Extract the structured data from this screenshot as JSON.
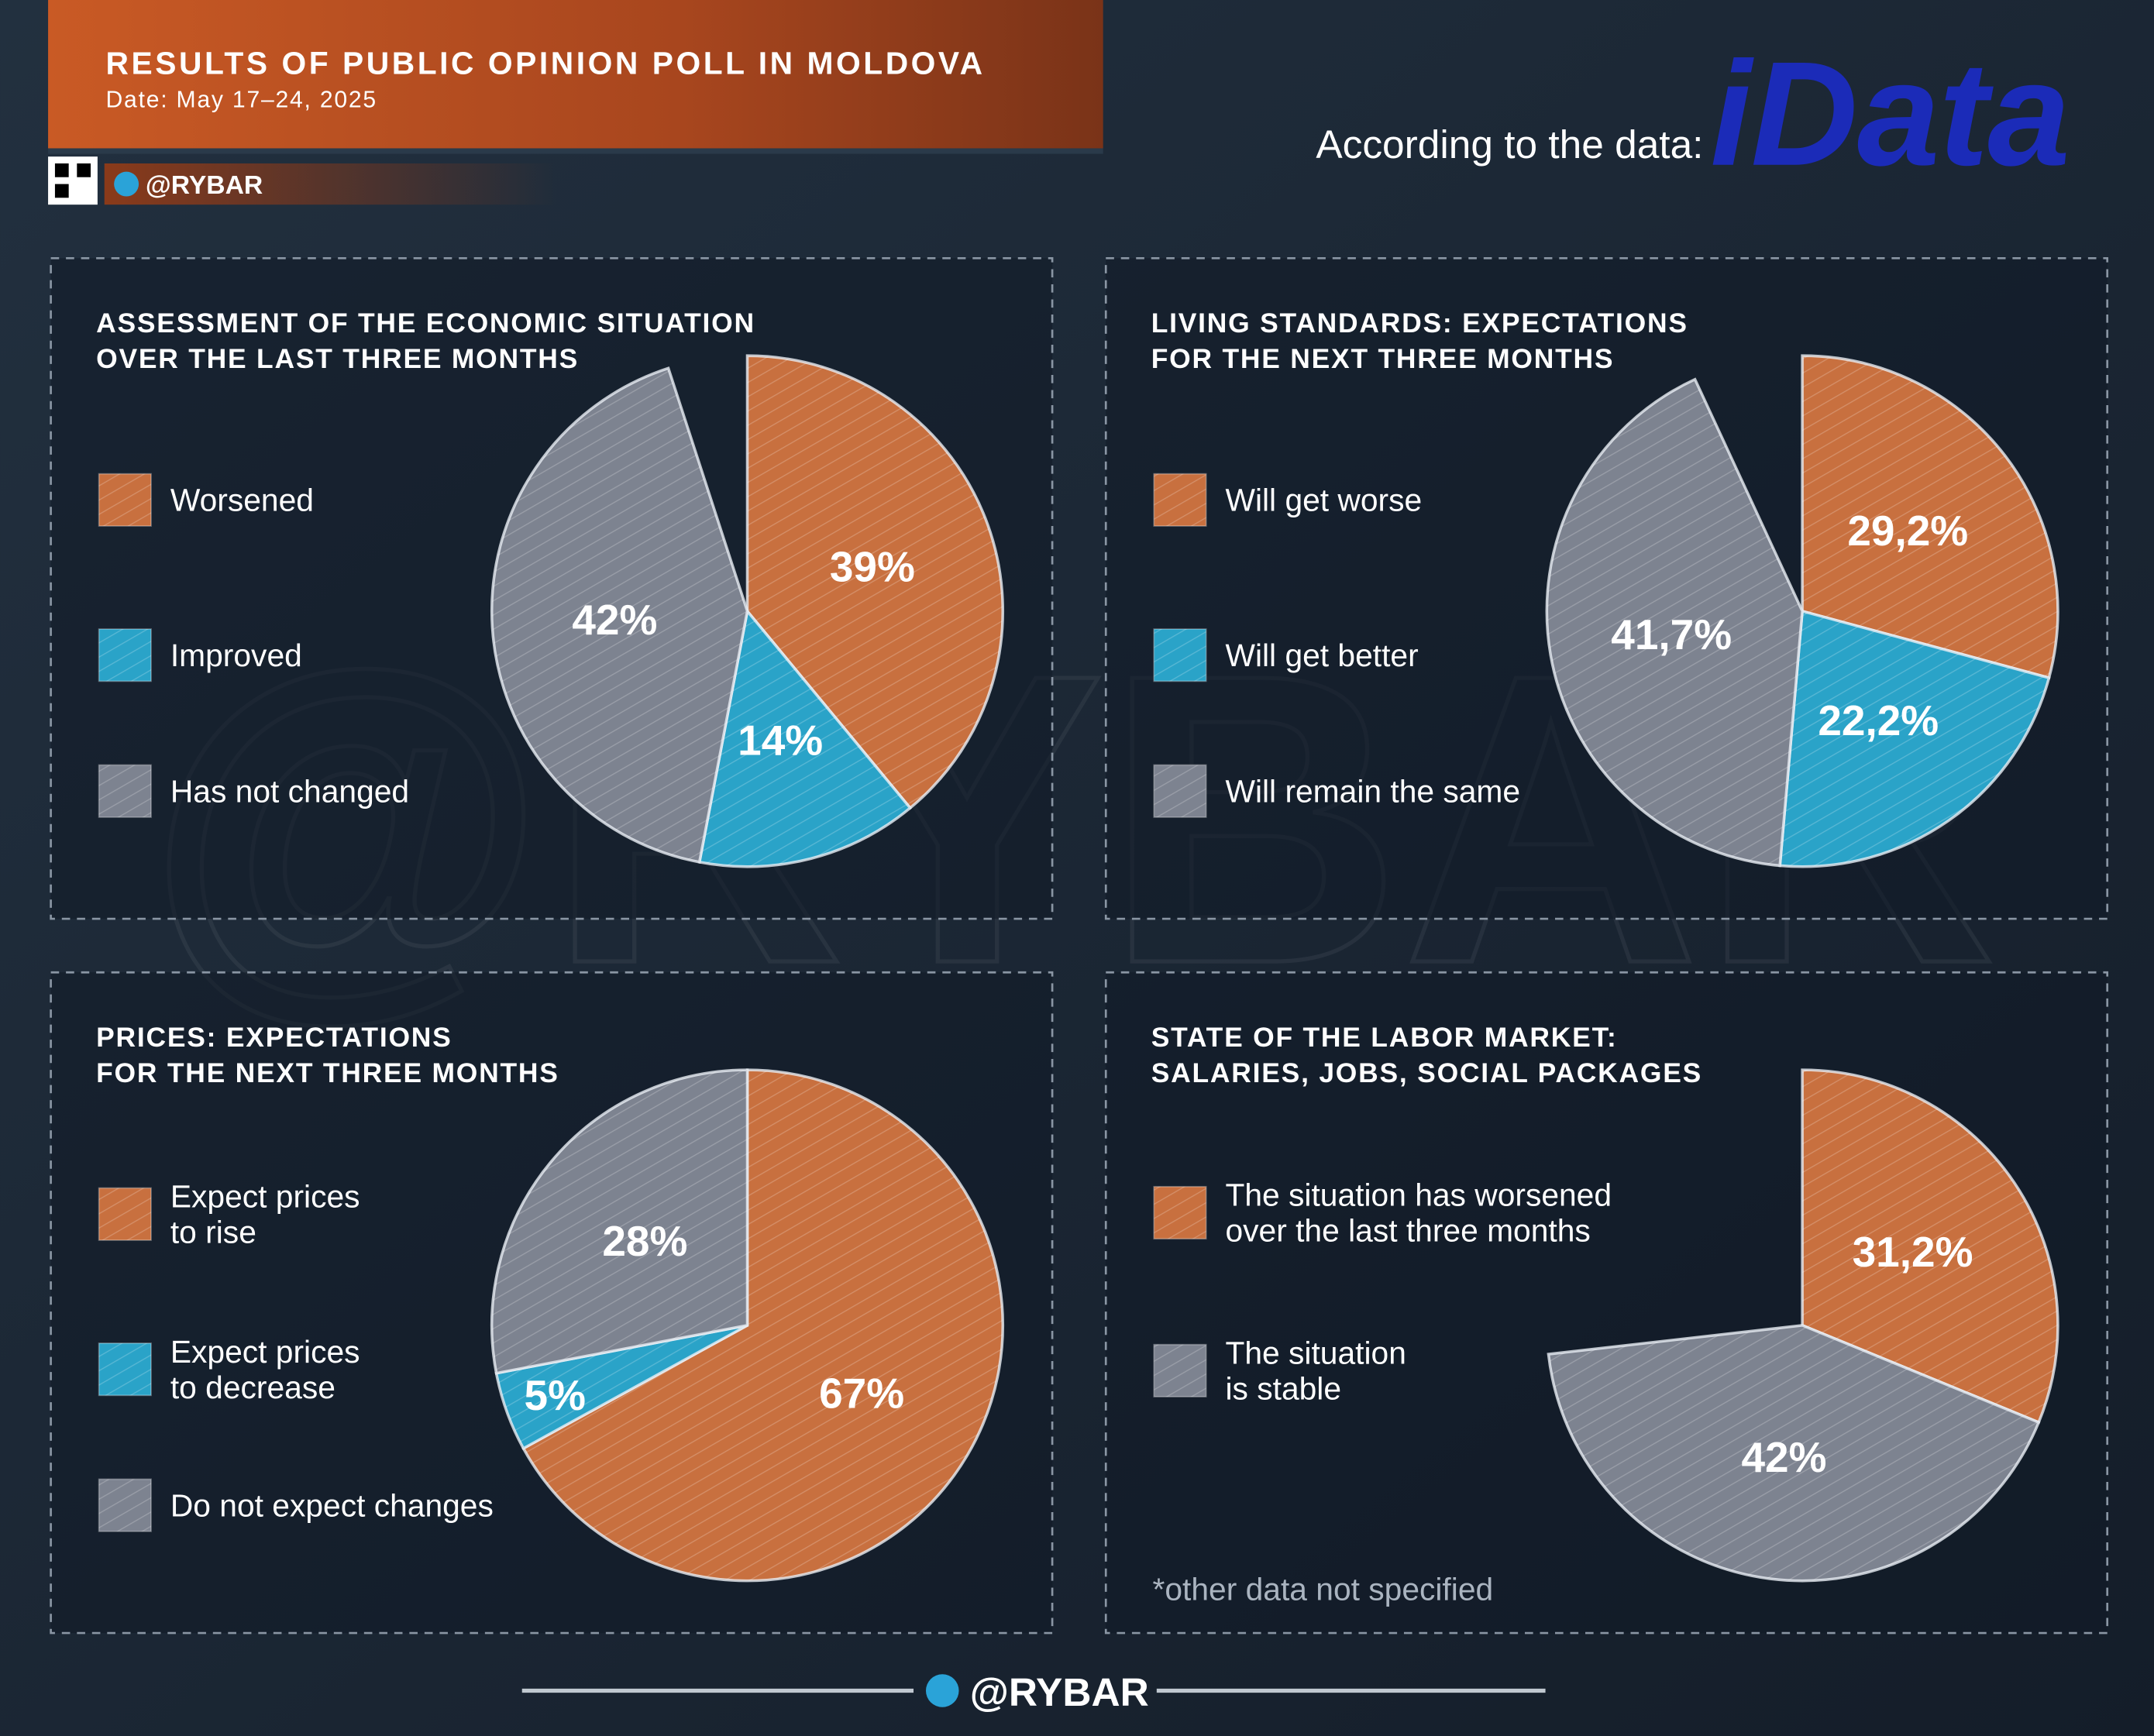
{
  "header": {
    "title": "RESULTS OF PUBLIC OPINION POLL IN MOLDOVA",
    "date": "Date: May 17–24, 2025",
    "handle": "@RYBAR"
  },
  "source": {
    "label": "According to the data:",
    "logo": "iData"
  },
  "footer": {
    "handle": "@RYBAR"
  },
  "chart_data": [
    {
      "type": "pie",
      "title": "ASSESSMENT OF THE ECONOMIC SITUATION\nOVER THE LAST THREE MONTHS",
      "series": [
        {
          "name": "Worsened",
          "color": "#c8703f",
          "values": [
            39
          ],
          "value_labels": [
            "39%"
          ]
        },
        {
          "name": "Improved",
          "color": "#2aa3c8",
          "values": [
            14
          ],
          "value_labels": [
            "14%"
          ]
        },
        {
          "name": "Has not changed",
          "color": "#7d8390",
          "values": [
            42
          ],
          "value_labels": [
            "42%"
          ]
        }
      ]
    },
    {
      "type": "pie",
      "title": "LIVING STANDARDS: EXPECTATIONS\nFOR THE NEXT THREE MONTHS",
      "series": [
        {
          "name": "Will get worse",
          "color": "#c8703f",
          "values": [
            29.2
          ],
          "value_labels": [
            "29,2%"
          ]
        },
        {
          "name": "Will get better",
          "color": "#2aa3c8",
          "values": [
            22.2
          ],
          "value_labels": [
            "22,2%"
          ]
        },
        {
          "name": "Will remain the same",
          "color": "#7d8390",
          "values": [
            41.7
          ],
          "value_labels": [
            "41,7%"
          ]
        }
      ]
    },
    {
      "type": "pie",
      "title": "PRICES: EXPECTATIONS\nFOR THE NEXT THREE MONTHS",
      "series": [
        {
          "name": "Expect prices\nto rise",
          "color": "#c8703f",
          "values": [
            67
          ],
          "value_labels": [
            "67%"
          ]
        },
        {
          "name": "Expect prices\nto decrease",
          "color": "#2aa3c8",
          "values": [
            5
          ],
          "value_labels": [
            "5%"
          ]
        },
        {
          "name": "Do not expect changes",
          "color": "#7d8390",
          "values": [
            28
          ],
          "value_labels": [
            "28%"
          ]
        }
      ]
    },
    {
      "type": "pie",
      "title": "STATE OF THE LABOR MARKET:\nSALARIES, JOBS, SOCIAL PACKAGES",
      "note": "*other data not specified",
      "series": [
        {
          "name": "The situation has worsened\nover the last three months",
          "color": "#c8703f",
          "values": [
            31.2
          ],
          "value_labels": [
            "31,2%"
          ]
        },
        {
          "name": "The situation\nis stable",
          "color": "#7d8390",
          "values": [
            42
          ],
          "value_labels": [
            "42%"
          ]
        }
      ]
    }
  ]
}
